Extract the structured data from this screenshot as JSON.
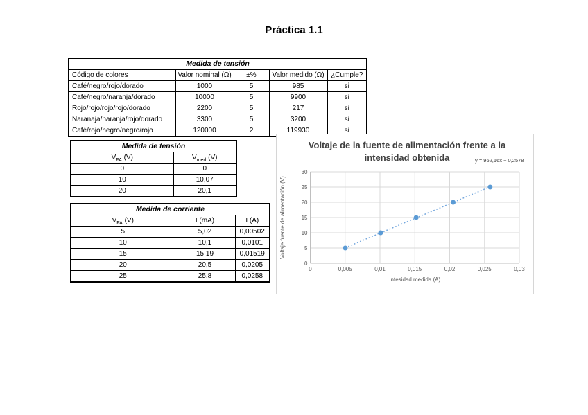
{
  "page": {
    "title": "Práctica 1.1"
  },
  "tables": {
    "resistors": {
      "title": "Medida de tensión",
      "headers": [
        "Código de colores",
        "Valor nominal (Ω)",
        "±%",
        "Valor medido (Ω)",
        "¿Cumple?"
      ],
      "rows": [
        [
          "Café/negro/rojo/dorado",
          "1000",
          "5",
          "985",
          "si"
        ],
        [
          "Café/negro/naranja/dorado",
          "10000",
          "5",
          "9900",
          "si"
        ],
        [
          "Rojo/rojo/rojo/rojo/dorado",
          "2200",
          "5",
          "217",
          "si"
        ],
        [
          "Naranaja/naranja/rojo/dorado",
          "3300",
          "5",
          "3200",
          "si"
        ],
        [
          "Café/rojo/negro/negro/rojo",
          "120000",
          "2",
          "119930",
          "si"
        ]
      ]
    },
    "tension": {
      "title": "Medida de tensión",
      "headers": [
        {
          "pre": "V",
          "sub": "FA",
          "post": " (V)"
        },
        {
          "pre": "V",
          "sub": "med",
          "post": " (V)"
        }
      ],
      "rows": [
        [
          "0",
          "0"
        ],
        [
          "10",
          "10,07"
        ],
        [
          "20",
          "20,1"
        ]
      ]
    },
    "corriente": {
      "title": "Medida de corriente",
      "headers": [
        {
          "pre": "V",
          "sub": "FA",
          "post": " (V)"
        },
        {
          "pre": "I",
          "sub": "",
          "post": " (mA)"
        },
        {
          "pre": "I",
          "sub": "",
          "post": " (A)"
        }
      ],
      "rows": [
        [
          "5",
          "5,02",
          "0,00502"
        ],
        [
          "10",
          "10,1",
          "0,0101"
        ],
        [
          "15",
          "15,19",
          "0,01519"
        ],
        [
          "20",
          "20,5",
          "0,0205"
        ],
        [
          "25",
          "25,8",
          "0,0258"
        ]
      ]
    }
  },
  "chart_data": {
    "type": "scatter",
    "title_lines": [
      "Voltaje de la fuente de alimentación frente a la",
      "intensidad obtenida"
    ],
    "equation": "y = 962,16x + 0,2578",
    "xlabel": "Intesidad medida (A)",
    "ylabel": "Voltaje fuente de alimentación (V)",
    "x": [
      0.00502,
      0.0101,
      0.01519,
      0.0205,
      0.0258
    ],
    "y": [
      5,
      10,
      15,
      20,
      25
    ],
    "xlim": [
      0,
      0.03
    ],
    "ylim": [
      0,
      30
    ],
    "xticks": {
      "values": [
        0,
        0.005,
        0.01,
        0.015,
        0.02,
        0.025,
        0.03
      ],
      "labels": [
        "0",
        "0,005",
        "0,01",
        "0,015",
        "0,02",
        "0,025",
        "0,03"
      ]
    },
    "yticks": {
      "values": [
        0,
        5,
        10,
        15,
        20,
        25,
        30
      ],
      "labels": [
        "0",
        "5",
        "10",
        "15",
        "20",
        "25",
        "30"
      ]
    },
    "trendline": {
      "slope": 962.16,
      "intercept": 0.2578,
      "style": "dotted"
    },
    "grid": true,
    "legend": "none",
    "colors": {
      "marker": "#5b9bd5",
      "trendline": "#74a7dd",
      "grid": "#d9d9d9",
      "axis": "#bfbfbf",
      "title": "#404040",
      "labels": "#595959"
    }
  }
}
